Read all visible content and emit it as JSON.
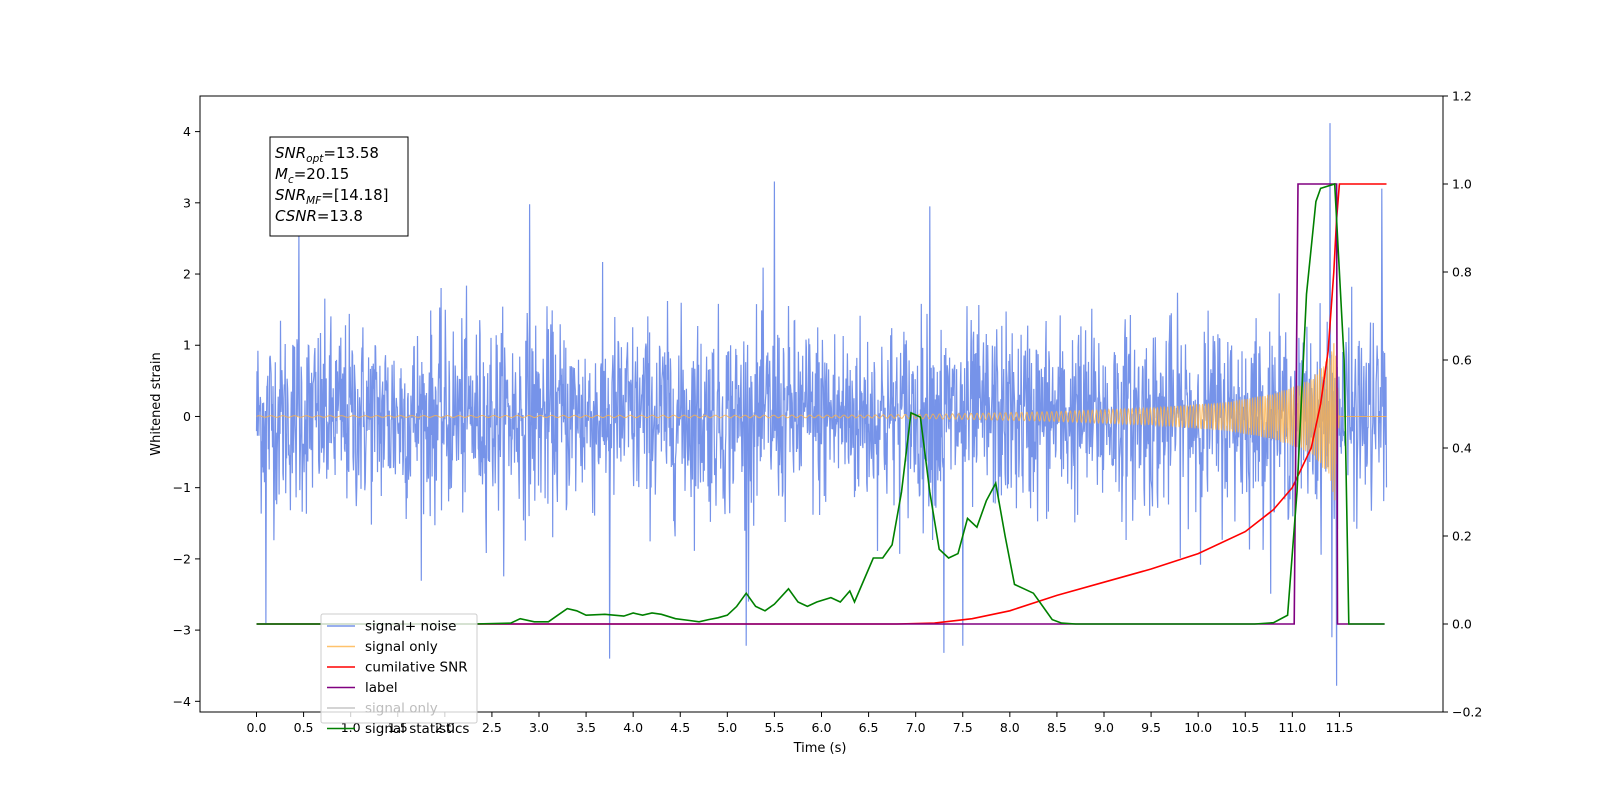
{
  "chart_data": {
    "type": "line",
    "title": "",
    "xlabel": "Time (s)",
    "ylabel": "Whitened strain",
    "y2label": "",
    "xlim": [
      -0.6,
      12.6
    ],
    "ylim": [
      -4.15,
      4.5
    ],
    "y2lim": [
      -0.2,
      1.2
    ],
    "x_ticks": [
      "0.0",
      "0.5",
      "1.0",
      "1.5",
      "2.0",
      "2.5",
      "3.0",
      "3.5",
      "4.0",
      "4.5",
      "5.0",
      "5.5",
      "6.0",
      "6.5",
      "7.0",
      "7.5",
      "8.0",
      "8.5",
      "9.0",
      "9.5",
      "10.0",
      "10.5",
      "11.0",
      "11.5"
    ],
    "y_ticks": [
      "4",
      "3",
      "2",
      "1",
      "0",
      "−1",
      "−2",
      "−3",
      "−4"
    ],
    "y2_ticks": [
      "1.2",
      "1.0",
      "0.8",
      "0.6",
      "0.4",
      "0.2",
      "0.0",
      "−0.2"
    ],
    "grid": false,
    "legend_position": "lower-left",
    "annotation": {
      "lines": [
        {
          "base": "SNR",
          "sub": "opt",
          "rest": "=13.58"
        },
        {
          "base": "M",
          "sub": "c",
          "rest": "=20.15"
        },
        {
          "base": "SNR",
          "sub": "MF",
          "rest": "=[14.18]"
        },
        {
          "base": "CSNR",
          "sub": "",
          "rest": "=13.8"
        }
      ]
    },
    "series": [
      {
        "name": "signal+ noise",
        "color": "#4169e1",
        "axis": "left",
        "kind": "noise",
        "t_range": [
          0,
          12
        ],
        "std": 0.92,
        "spikes_up": [
          [
            0.45,
            2.63
          ],
          [
            2.9,
            2.98
          ],
          [
            5.5,
            3.3
          ],
          [
            7.15,
            2.95
          ],
          [
            11.4,
            4.12
          ],
          [
            11.95,
            3.2
          ]
        ],
        "spikes_down": [
          [
            0.1,
            -2.9
          ],
          [
            3.75,
            -3.4
          ],
          [
            5.2,
            -3.22
          ],
          [
            7.3,
            -3.32
          ],
          [
            7.5,
            -3.22
          ],
          [
            11.47,
            -3.78
          ],
          [
            11.42,
            -3.1
          ]
        ]
      },
      {
        "name": "signal only",
        "color": "#ffb347",
        "axis": "left",
        "kind": "chirp",
        "t_range": [
          0,
          12
        ],
        "amp_points": [
          [
            0,
            0.01
          ],
          [
            6.5,
            0.02
          ],
          [
            7.5,
            0.04
          ],
          [
            8.5,
            0.07
          ],
          [
            9.5,
            0.12
          ],
          [
            10.3,
            0.2
          ],
          [
            10.8,
            0.32
          ],
          [
            11.2,
            0.52
          ],
          [
            11.4,
            0.85
          ],
          [
            11.45,
            1.2
          ],
          [
            11.5,
            0.0
          ],
          [
            12,
            0.0
          ]
        ]
      },
      {
        "name": "cumilative SNR",
        "color": "#ff0000",
        "axis": "right",
        "points": [
          [
            0,
            0
          ],
          [
            6.8,
            0
          ],
          [
            7.2,
            0.002
          ],
          [
            7.6,
            0.012
          ],
          [
            8.0,
            0.03
          ],
          [
            8.5,
            0.065
          ],
          [
            9.0,
            0.095
          ],
          [
            9.5,
            0.125
          ],
          [
            10.0,
            0.16
          ],
          [
            10.5,
            0.21
          ],
          [
            10.8,
            0.26
          ],
          [
            11.0,
            0.31
          ],
          [
            11.2,
            0.4
          ],
          [
            11.3,
            0.5
          ],
          [
            11.38,
            0.62
          ],
          [
            11.44,
            0.8
          ],
          [
            11.47,
            0.92
          ],
          [
            11.5,
            1.0
          ],
          [
            12.0,
            1.0
          ]
        ]
      },
      {
        "name": "label",
        "color": "#800080",
        "axis": "right",
        "points": [
          [
            0,
            0
          ],
          [
            11.02,
            0
          ],
          [
            11.06,
            1.0
          ],
          [
            11.47,
            1.0
          ],
          [
            11.48,
            0
          ],
          [
            11.98,
            0
          ]
        ]
      },
      {
        "name": "signal only",
        "color": "#bbbbbb",
        "axis": "right",
        "hidden": true,
        "points": []
      },
      {
        "name": "signal statistics",
        "color": "#008000",
        "axis": "right",
        "points": [
          [
            0,
            0
          ],
          [
            2.3,
            0
          ],
          [
            2.7,
            0.002
          ],
          [
            2.8,
            0.012
          ],
          [
            2.95,
            0.005
          ],
          [
            3.1,
            0.005
          ],
          [
            3.2,
            0.02
          ],
          [
            3.3,
            0.035
          ],
          [
            3.4,
            0.03
          ],
          [
            3.5,
            0.02
          ],
          [
            3.7,
            0.022
          ],
          [
            3.8,
            0.02
          ],
          [
            3.9,
            0.018
          ],
          [
            4.0,
            0.025
          ],
          [
            4.1,
            0.02
          ],
          [
            4.2,
            0.025
          ],
          [
            4.3,
            0.022
          ],
          [
            4.45,
            0.012
          ],
          [
            4.6,
            0.008
          ],
          [
            4.7,
            0.005
          ],
          [
            4.8,
            0.01
          ],
          [
            4.9,
            0.014
          ],
          [
            5.0,
            0.02
          ],
          [
            5.1,
            0.04
          ],
          [
            5.2,
            0.07
          ],
          [
            5.3,
            0.04
          ],
          [
            5.4,
            0.03
          ],
          [
            5.5,
            0.045
          ],
          [
            5.65,
            0.08
          ],
          [
            5.75,
            0.05
          ],
          [
            5.85,
            0.04
          ],
          [
            5.95,
            0.05
          ],
          [
            6.1,
            0.06
          ],
          [
            6.2,
            0.05
          ],
          [
            6.3,
            0.075
          ],
          [
            6.35,
            0.05
          ],
          [
            6.45,
            0.1
          ],
          [
            6.55,
            0.15
          ],
          [
            6.65,
            0.15
          ],
          [
            6.75,
            0.18
          ],
          [
            6.85,
            0.3
          ],
          [
            6.95,
            0.48
          ],
          [
            7.05,
            0.47
          ],
          [
            7.15,
            0.3
          ],
          [
            7.25,
            0.17
          ],
          [
            7.35,
            0.15
          ],
          [
            7.45,
            0.16
          ],
          [
            7.55,
            0.24
          ],
          [
            7.65,
            0.22
          ],
          [
            7.75,
            0.28
          ],
          [
            7.85,
            0.32
          ],
          [
            7.95,
            0.2
          ],
          [
            8.05,
            0.09
          ],
          [
            8.15,
            0.08
          ],
          [
            8.25,
            0.07
          ],
          [
            8.35,
            0.04
          ],
          [
            8.45,
            0.01
          ],
          [
            8.55,
            0.002
          ],
          [
            8.7,
            0
          ],
          [
            10.6,
            0
          ],
          [
            10.8,
            0.003
          ],
          [
            10.95,
            0.02
          ],
          [
            11.05,
            0.3
          ],
          [
            11.15,
            0.75
          ],
          [
            11.25,
            0.96
          ],
          [
            11.3,
            0.99
          ],
          [
            11.45,
            1.0
          ],
          [
            11.55,
            0.6
          ],
          [
            11.6,
            0
          ],
          [
            11.98,
            0
          ]
        ]
      }
    ]
  }
}
